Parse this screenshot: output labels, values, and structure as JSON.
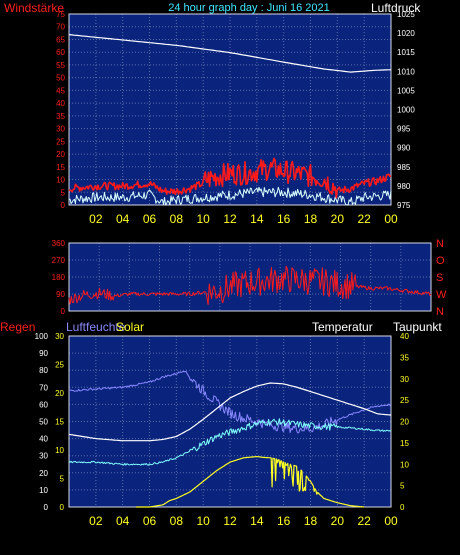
{
  "colors": {
    "background": "#000000",
    "plot_bg": "#0a237d",
    "grid": "#5a6ea8",
    "frame": "#d8d8e8",
    "header_red": "#ff1e1e",
    "header_cyan": "#40e8ff",
    "header_white": "#ffffff",
    "hour_yellow": "#ffff20",
    "wind": "#ff1a1a",
    "gust": "#d8ffff",
    "pressure": "#ffffff",
    "direction": "#ff1a1a",
    "humidity": "#8888ff",
    "solar": "#ffff20",
    "temperature": "#ffffff",
    "dewpoint": "#80ffff",
    "rain_axis": "#ffffff",
    "humidity_axis": "#8888ff",
    "solar_axis": "#ffff20"
  },
  "header": {
    "left": "Windstärke",
    "center": "24 hour graph day : Juni 16 2021",
    "right": "Luftdruck"
  },
  "chart_data": [
    {
      "type": "line",
      "panel": "wind-pressure",
      "x_ticks": [
        "02",
        "04",
        "06",
        "08",
        "10",
        "12",
        "14",
        "16",
        "18",
        "20",
        "22",
        "00"
      ],
      "left_axis": {
        "label": "Windstärke",
        "ticks": [
          0,
          5,
          10,
          15,
          20,
          25,
          30,
          35,
          40,
          45,
          50,
          55,
          60,
          65,
          70,
          75
        ],
        "range": [
          0,
          75
        ]
      },
      "right_axis": {
        "label": "Luftdruck",
        "ticks": [
          975,
          980,
          985,
          990,
          995,
          1000,
          1005,
          1010,
          1015,
          1020,
          1025
        ],
        "range": [
          975,
          1025
        ]
      },
      "series": [
        {
          "role": "pressure",
          "hours": [
            0,
            4,
            8,
            12,
            16,
            19,
            21,
            23,
            24
          ],
          "values": [
            1019.6,
            1018.2,
            1016.8,
            1014.9,
            1012.4,
            1010.6,
            1009.8,
            1010.3,
            1010.4
          ]
        },
        {
          "role": "wind",
          "hours": [
            0,
            2,
            4,
            6,
            7,
            8,
            9,
            10,
            11,
            12,
            13,
            14,
            15,
            16,
            17,
            18,
            19,
            20,
            21,
            22,
            23,
            24
          ],
          "values": [
            6,
            7,
            7,
            8,
            5,
            5,
            6,
            8,
            10,
            11,
            11,
            12,
            13,
            12,
            11,
            10,
            9,
            5,
            6,
            8,
            9,
            11
          ]
        },
        {
          "role": "gust",
          "hours": [
            0,
            2,
            4,
            6,
            7,
            8,
            10,
            12,
            14,
            16,
            18,
            20,
            21,
            22,
            24
          ],
          "values": [
            2,
            3,
            3,
            4,
            1,
            2,
            3,
            4,
            5,
            5,
            4,
            2,
            1,
            3,
            4
          ]
        }
      ]
    },
    {
      "type": "scatter",
      "panel": "wind-direction",
      "x_ticks": [
        "02",
        "04",
        "06",
        "08",
        "10",
        "12",
        "14",
        "16",
        "18",
        "20",
        "22",
        "00"
      ],
      "left_axis": {
        "label": "",
        "ticks": [
          0,
          90,
          180,
          270,
          360
        ],
        "range": [
          0,
          360
        ]
      },
      "right_axis": {
        "label": "",
        "ticks": [
          "N",
          "W",
          "S",
          "O",
          "N"
        ]
      },
      "series": [
        {
          "role": "direction",
          "hours": [
            0,
            1,
            2,
            3,
            4,
            6,
            8,
            10,
            11,
            12,
            13,
            14,
            15,
            16,
            17,
            18,
            19,
            20,
            21,
            22,
            23,
            24
          ],
          "values": [
            60,
            85,
            95,
            80,
            90,
            90,
            90,
            110,
            135,
            150,
            160,
            170,
            165,
            160,
            155,
            140,
            130,
            120,
            120,
            110,
            100,
            90
          ]
        }
      ]
    },
    {
      "type": "line",
      "panel": "climate",
      "labels": {
        "rain": "Regen",
        "humidity": "Luftfeuchte",
        "solar": "Solar",
        "temperature": "Temperatur",
        "dewpoint": "Taupunkt"
      },
      "x_ticks": [
        "02",
        "04",
        "06",
        "08",
        "10",
        "12",
        "14",
        "16",
        "18",
        "20",
        "22",
        "00"
      ],
      "humidity_axis": {
        "ticks": [
          0,
          10,
          20,
          30,
          40,
          50,
          60,
          70,
          80,
          90,
          100
        ],
        "range": [
          0,
          100
        ]
      },
      "rain_axis": {
        "ticks": [
          0,
          5,
          10,
          15,
          20,
          25,
          30
        ],
        "range": [
          0,
          30
        ]
      },
      "temperature_axis": {
        "ticks": [
          0,
          5,
          10,
          15,
          20,
          25,
          30,
          35,
          40
        ],
        "range": [
          0,
          40
        ]
      },
      "series": [
        {
          "role": "humidity",
          "hours": [
            0,
            2,
            4,
            6,
            7,
            8,
            8.6,
            9,
            10,
            11,
            12,
            13,
            14,
            15,
            16,
            17,
            18,
            19,
            20,
            21,
            22,
            23,
            24
          ],
          "values": [
            68,
            69,
            70,
            73,
            76,
            78,
            80,
            76,
            68,
            61,
            55,
            52,
            50,
            48,
            47,
            46,
            46,
            48,
            51,
            54,
            57,
            59,
            60
          ]
        },
        {
          "role": "temperature",
          "hours": [
            0,
            2,
            4,
            5,
            6,
            7,
            8,
            9,
            10,
            11,
            12,
            13,
            14,
            15,
            16,
            17,
            18,
            19,
            20,
            21,
            22,
            23,
            24
          ],
          "values": [
            17,
            16,
            15.5,
            15.5,
            15.5,
            15.8,
            16.5,
            18.2,
            20.5,
            23,
            25.5,
            27,
            28.3,
            29,
            28.8,
            28,
            27,
            26,
            25,
            24,
            23,
            21.8,
            21.5
          ]
        },
        {
          "role": "dewpoint",
          "hours": [
            0,
            2,
            4,
            6,
            7,
            8,
            9,
            10,
            11,
            12,
            13,
            14,
            15,
            16,
            17,
            18,
            19,
            20,
            21,
            22,
            23,
            24
          ],
          "values": [
            10.5,
            10.5,
            10,
            10,
            10.5,
            11.5,
            13,
            14.8,
            16.5,
            17.5,
            18.5,
            19.5,
            20,
            19.8,
            19.3,
            19,
            18.8,
            18.7,
            18.5,
            18.2,
            17.9,
            17.8
          ]
        },
        {
          "role": "solar",
          "hours": [
            5,
            6,
            7,
            7.5,
            8,
            9,
            10,
            11,
            12,
            13,
            14,
            14.5,
            15,
            15.5,
            16,
            17,
            17.5,
            18,
            18.5,
            19,
            20,
            21,
            22
          ],
          "values": [
            0,
            0,
            0.5,
            1.5,
            2,
            3.5,
            6,
            8.5,
            10.5,
            11.5,
            11.8,
            11.6,
            11.5,
            11.2,
            10.5,
            9.5,
            8,
            6,
            3.5,
            2,
            1,
            0.3,
            0
          ]
        },
        {
          "role": "rain",
          "hours": [
            0,
            24
          ],
          "values": [
            0,
            0
          ]
        }
      ]
    }
  ]
}
